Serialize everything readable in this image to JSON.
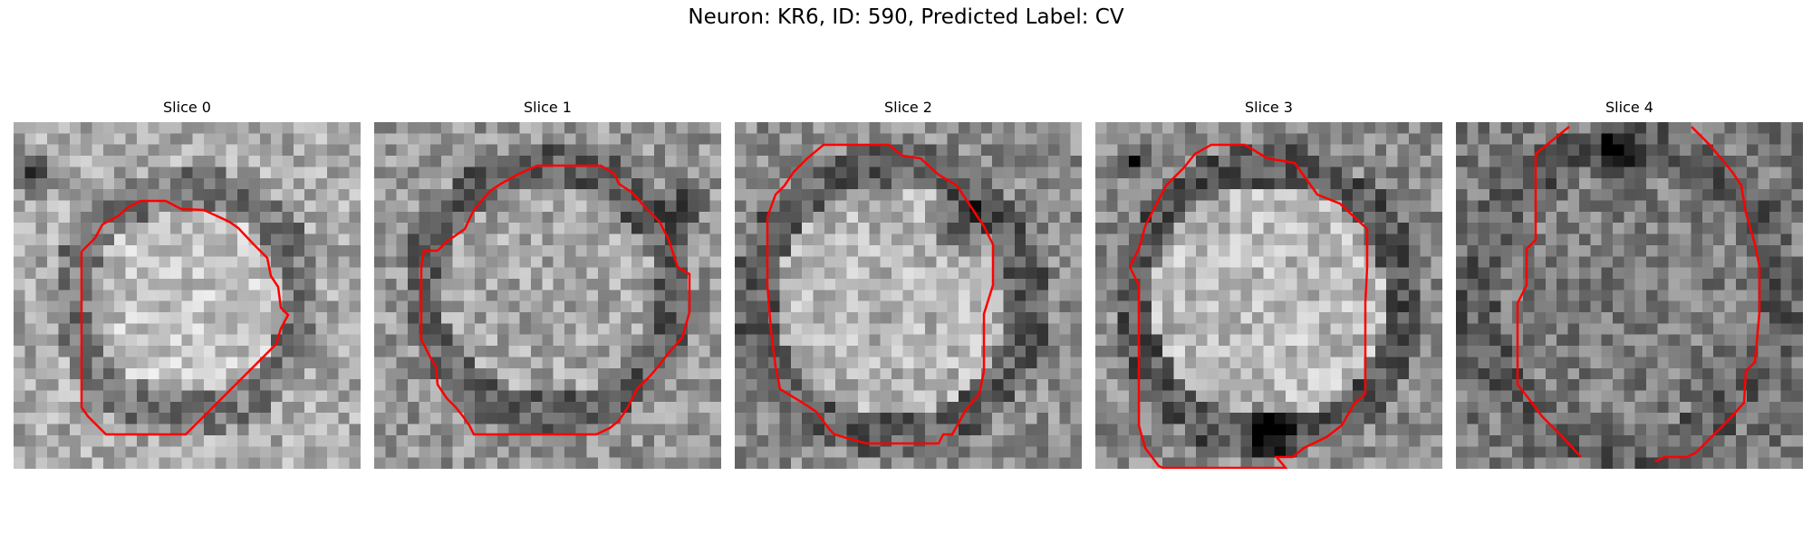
{
  "figure": {
    "title": "Neuron: KR6, ID: 590, Predicted Label: CV"
  },
  "panels": [
    {
      "title": "Slice 0"
    },
    {
      "title": "Slice 1"
    },
    {
      "title": "Slice 2"
    },
    {
      "title": "Slice 3"
    },
    {
      "title": "Slice 4"
    }
  ],
  "colors": {
    "contour": "#ff0000"
  }
}
